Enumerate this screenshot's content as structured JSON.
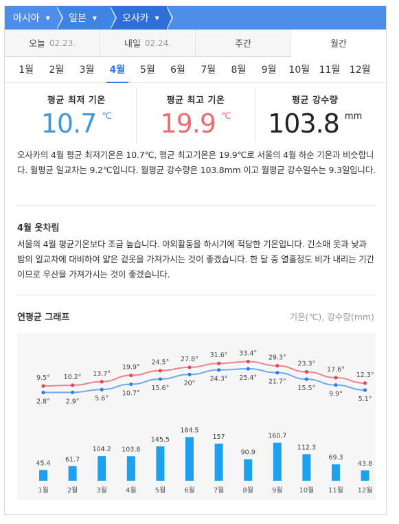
{
  "breadcrumb": [
    "아시아",
    "일본",
    "오사카"
  ],
  "tabs": [
    {
      "label": "오늘",
      "date": "02.23."
    },
    {
      "label": "내일",
      "date": "02.24."
    },
    {
      "label": "주간",
      "date": ""
    },
    {
      "label": "월간",
      "date": ""
    }
  ],
  "months": [
    "1월",
    "2월",
    "3월",
    "4월",
    "5월",
    "6월",
    "7월",
    "8월",
    "9월",
    "10월",
    "11월",
    "12월"
  ],
  "active_month": "4월",
  "stats": {
    "min_label": "평균 최저 기온",
    "min_value": "10.7",
    "min_unit": "℃",
    "max_label": "평균 최고 기온",
    "max_value": "19.9",
    "max_unit": "℃",
    "rain_label": "평균 강수량",
    "rain_value": "103.8",
    "rain_unit": "mm"
  },
  "summary": "오사카의 4월 평균 최저기온은 10.7℃, 평균 최고기온은 19.9℃로 서울의 4월 하순 기온과 비슷합니다. 월평균 일교차는 9.2℃입니다. 월평균 강수량은 103.8mm 이고 월평균 강수일수는 9.3일입니다.",
  "clothing": {
    "title": "4월 옷차림",
    "text": "서울의 4월 평균기온보다 조금 높습니다. 야외활동을 하시기에 적당한 기온입니다. 긴소매 옷과 낮과 밤의 일교차에 대비하여 얇은 겉옷을 가져가시는 것이 좋겠습니다. 한 달 중 열흘정도 비가 내리는 기간이므로 우산을 가져가시는 것이 좋겠습니다."
  },
  "graph": {
    "title": "연평균 그래프",
    "units": "기온(℃), 강수량(mm)"
  },
  "chart_data": {
    "type": "line+bar",
    "categories": [
      "1월",
      "2월",
      "3월",
      "4월",
      "5월",
      "6월",
      "7월",
      "8월",
      "9월",
      "10월",
      "11월",
      "12월"
    ],
    "series": [
      {
        "values": [
          9.5,
          10.2,
          13.7,
          19.9,
          24.5,
          27.8,
          31.6,
          33.4,
          29.3,
          23.3,
          17.6,
          12.3
        ],
        "color": "#f0808a",
        "kind": "line"
      },
      {
        "values": [
          2.8,
          2.9,
          5.6,
          10.7,
          15.6,
          20,
          24.3,
          25.4,
          21.7,
          15.5,
          9.9,
          5.1
        ],
        "color": "#6aaaee",
        "kind": "line"
      },
      {
        "values": [
          45.4,
          61.7,
          104.2,
          103.8,
          145.5,
          184.5,
          157,
          90.9,
          160.7,
          112.3,
          69.3,
          43.8
        ],
        "color": "#1ea0f0",
        "kind": "bar"
      }
    ],
    "temp_labels_max": [
      "9.5°",
      "10.2°",
      "13.7°",
      "19.9°",
      "24.5°",
      "27.8°",
      "31.6°",
      "33.4°",
      "29.3°",
      "23.3°",
      "17.6°",
      "12.3°"
    ],
    "temp_labels_min": [
      "2.8°",
      "2.9°",
      "5.6°",
      "10.7°",
      "15.6°",
      "20°",
      "24.3°",
      "25.4°",
      "21.7°",
      "15.5°",
      "9.9°",
      "5.1°"
    ],
    "rain_labels": [
      "45.4",
      "61.7",
      "104.2",
      "103.8",
      "145.5",
      "184.5",
      "157",
      "90.9",
      "160.7",
      "112.3",
      "69.3",
      "43.8"
    ]
  }
}
